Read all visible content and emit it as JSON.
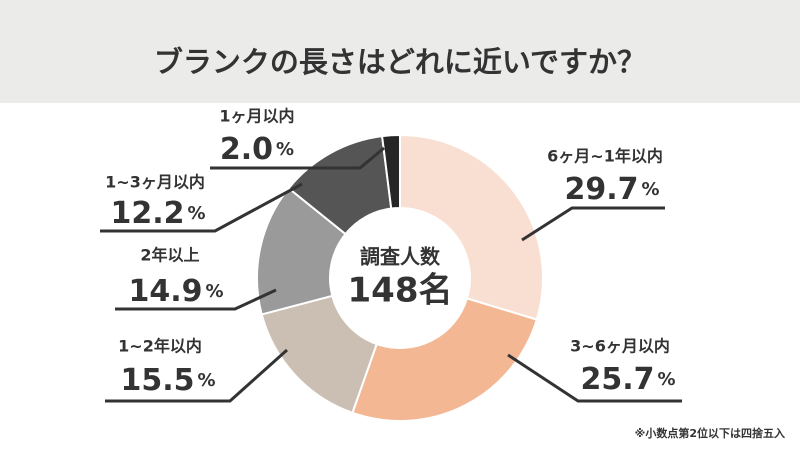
{
  "chart_data": {
    "type": "donut",
    "title": "ブランクの長さはどれに近いですか？",
    "center_title": "調査人数",
    "center_total": "148名",
    "categories": [
      "6ヶ月~1年以内",
      "3~6ヶ月以内",
      "1~2年以内",
      "2年以上",
      "1~3ヶ月以内",
      "1ヶ月以内"
    ],
    "values": [
      29.7,
      25.7,
      15.5,
      14.9,
      12.2,
      2.0
    ],
    "value_labels": [
      "29.7%",
      "25.7%",
      "15.5%",
      "14.9%",
      "12.2%",
      "2.0%"
    ],
    "colors": [
      "#f9dfd1",
      "#f3b893",
      "#cbbfb4",
      "#9a9a9a",
      "#555555",
      "#262626"
    ],
    "footnote": "※小数点第2位以下は四捨五入"
  }
}
